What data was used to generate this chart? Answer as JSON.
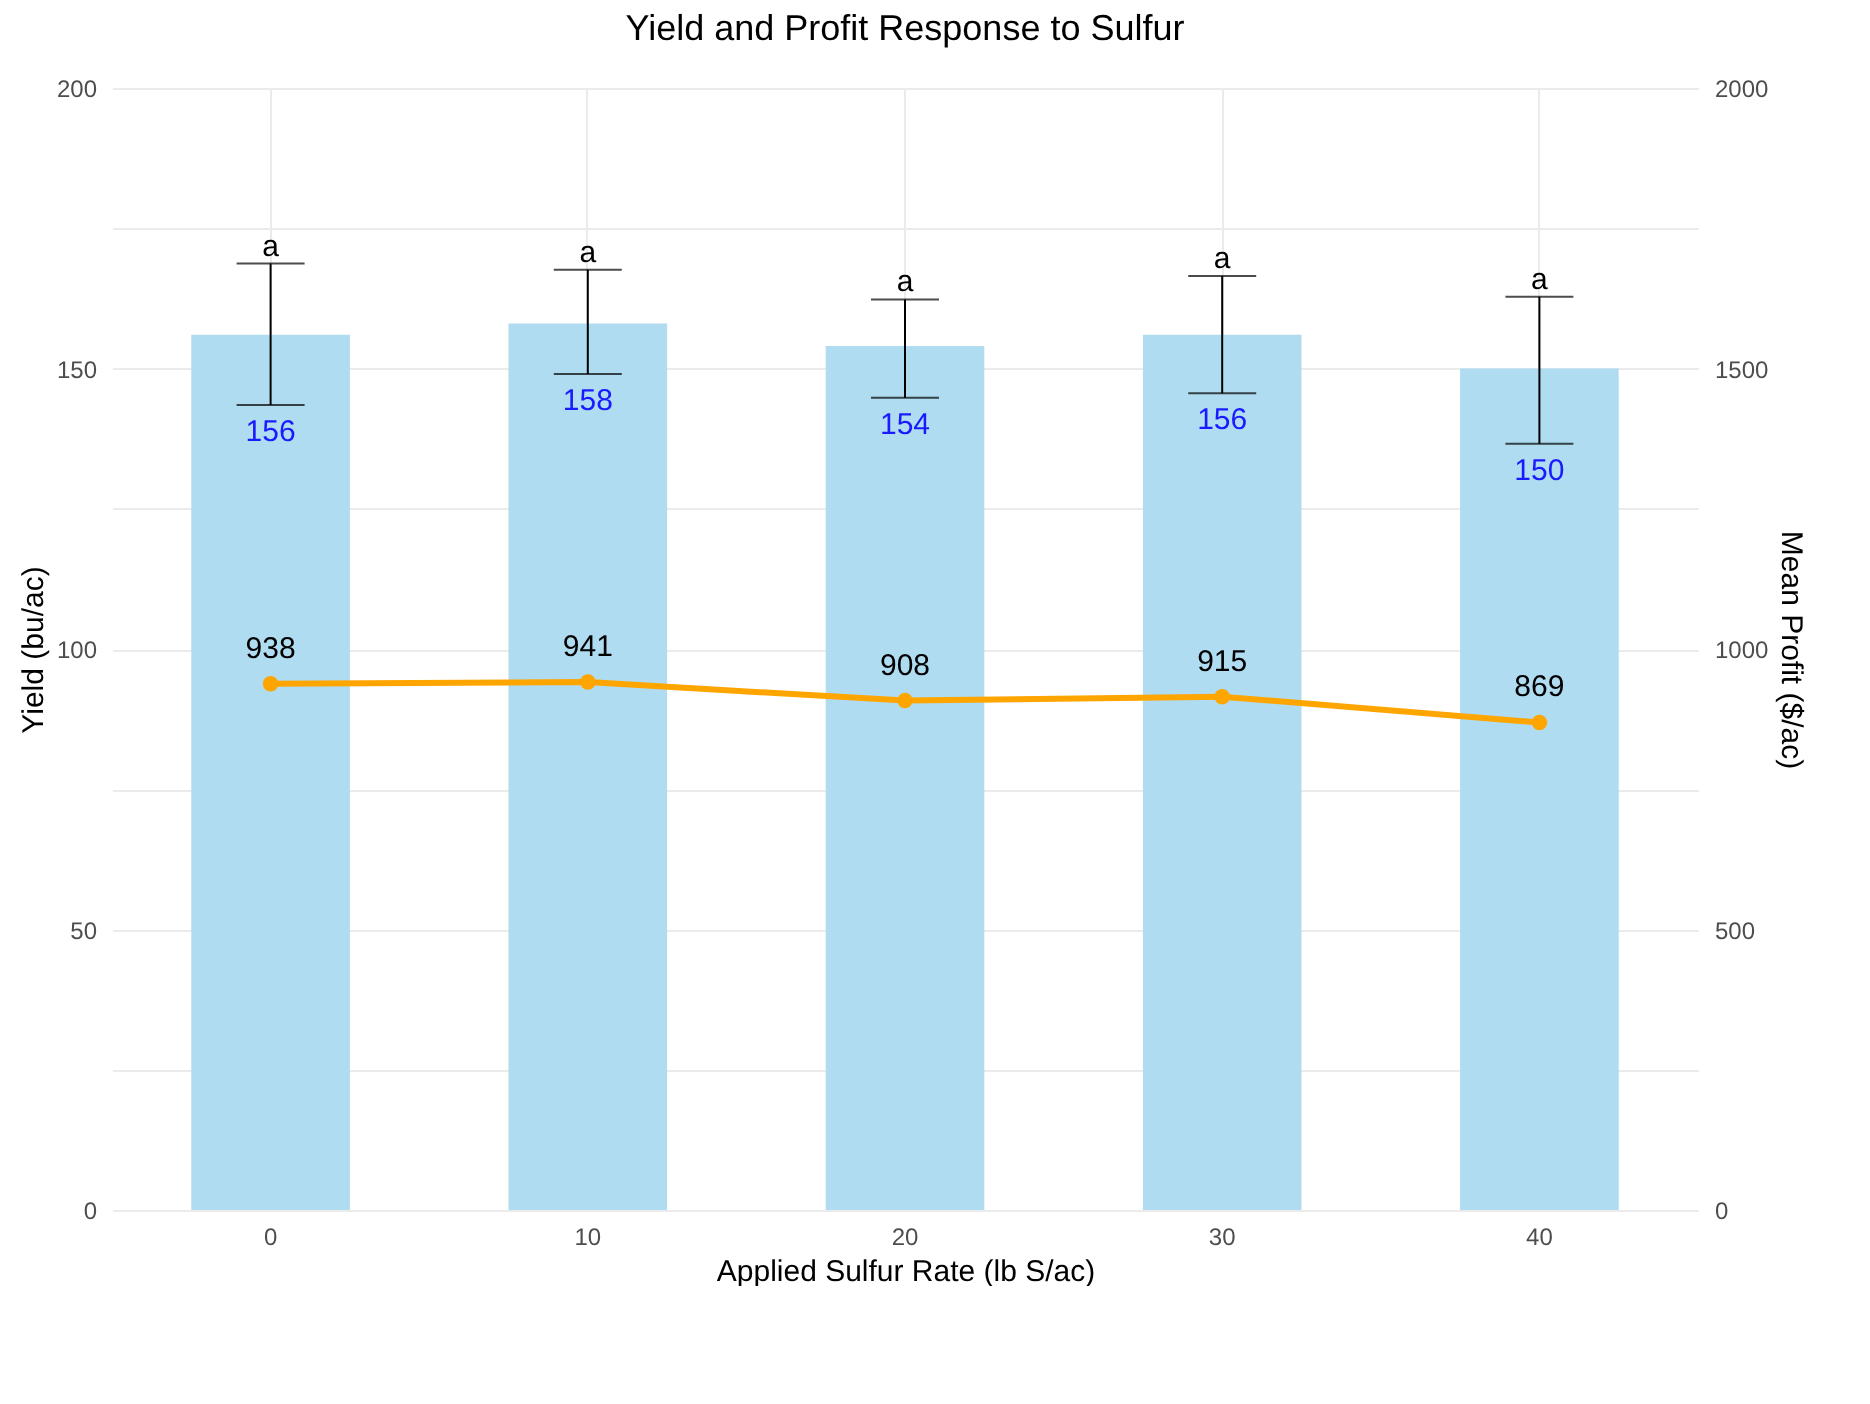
{
  "chart_data": {
    "type": "bar",
    "title": "Yield and Profit Response to Sulfur",
    "xlabel": "Applied Sulfur Rate (lb S/ac)",
    "ylabel": "Yield (bu/ac)",
    "y2label": "Mean Profit ($/ac)",
    "categories": [
      "0",
      "10",
      "20",
      "30",
      "40"
    ],
    "series": [
      {
        "color": "#afdcf0",
        "values": [
          156,
          158,
          154,
          156,
          150
        ],
        "errors": [
          [
            143.5,
            168.7
          ],
          [
            149,
            167.6
          ],
          [
            144.8,
            162.3
          ],
          [
            145.6,
            166.5
          ],
          [
            136.6,
            162.8
          ]
        ],
        "value_labels": [
          "156",
          "158",
          "154",
          "156",
          "150"
        ]
      },
      {
        "type": "line",
        "axis": "y2",
        "color": "#ffa500",
        "values": [
          938,
          941,
          908,
          915,
          869
        ],
        "marker": "circle",
        "line_style": "solid"
      }
    ],
    "data_labels": true,
    "ylim": [
      0,
      200
    ],
    "yticks": [
      0,
      {
        "value": 25,
        "label": null
      },
      50,
      {
        "value": 75,
        "label": null
      },
      100,
      {
        "value": 125,
        "label": null
      },
      150,
      {
        "value": 175,
        "label": null
      },
      200
    ],
    "y2lim": [
      0,
      2000
    ],
    "y2ticks": [
      0,
      500,
      1000,
      1500,
      2000
    ],
    "grid": true,
    "annotations": [
      {
        "text": "a",
        "x": "0",
        "y": 168.7
      },
      {
        "text": "a",
        "x": "10",
        "y": 167.6
      },
      {
        "text": "a",
        "x": "20",
        "y": 162.3
      },
      {
        "text": "a",
        "x": "30",
        "y": 166.5
      },
      {
        "text": "a",
        "x": "40",
        "y": 162.8
      }
    ]
  }
}
